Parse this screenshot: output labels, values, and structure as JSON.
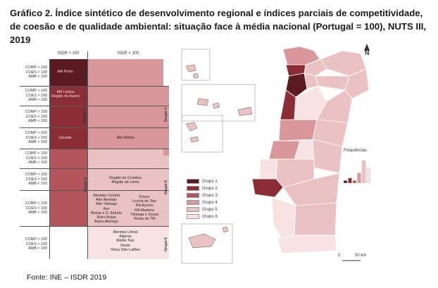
{
  "title": "Gráfico 2. Índice sintético de desenvolvimento regional e índices parciais de competitividade, de coesão e de qualidade ambiental: situação face à média nacional (Portugal = 100), NUTS III, 2019",
  "source": "Fonte: INE – ISDR 2019",
  "matrix": {
    "col_headers": [
      "ISDR > 100",
      "ISDR < 100"
    ],
    "row_labels": [
      "COMP > 100\nCOES > 100\nAMB > 100",
      "COMP > 100\nCOES > 100\nAMB < 100",
      "COMP > 100\nCOES < 100\nAMB > 100",
      "COMP < 100\nCOES > 100\nAMB > 100",
      "COMP > 100\nCOES < 100\nAMB < 100",
      "COMP < 100\nCOES > 100\nAMB < 100",
      "COMP < 100\nCOES < 100\nAMB > 100",
      "COMP < 100\nCOES < 100\nAMB < 100"
    ],
    "region_labels": {
      "am_porto": "AM Porto",
      "am_lisboa": "AM Lisboa\nRegião de Aveiro",
      "cavado": "Cávado",
      "alto_minho": "Alto Minho",
      "coimbra_leiria": "Região de Coimbra\nRegião de Leiria",
      "left_group5": "Alentejo Central\nAlto Alentejo\nAlto Tâmega\nAve\nBeiras e S. Estrela\nBeira Baixa\nBaixo Alentejo",
      "right_group5": "Douro\nLezíria do Tejo\nRA Açores\nRA Madeira\nTâmega e Sousa\nTerras de TM",
      "group6": "Alentejo Litoral\nAlgarve\nMédio Tejo\nOeste\nViseu Dão-Lafões"
    },
    "group_labels": [
      "Grupo 1",
      "Grupo 2",
      "Grupo 3",
      "Grupo 4",
      "Grupo 5",
      "Grupo 6"
    ]
  },
  "legend": {
    "items": [
      "Grupo 1",
      "Grupo 2",
      "Grupo 3",
      "Grupo 4",
      "Grupo 5",
      "Grupo 6"
    ],
    "colors": [
      "#5a1a1f",
      "#8b2d35",
      "#b4545b",
      "#d9969b",
      "#ebc2c4",
      "#f7e3e4"
    ]
  },
  "freq_legend": {
    "label": "Frequências",
    "values": [
      1,
      2,
      1,
      4,
      9,
      6
    ]
  },
  "scale": {
    "start": "0",
    "end": "50 km"
  },
  "north": "N"
}
